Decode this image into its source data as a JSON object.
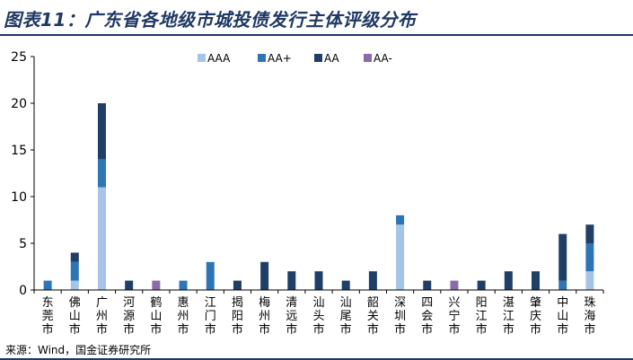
{
  "header": {
    "title": "图表11：广东省各地级市城投债发行主体评级分布"
  },
  "footer": {
    "source": "来源：Wind，国金证券研究所"
  },
  "chart_data": {
    "type": "bar",
    "stacked": true,
    "title": "图表11：广东省各地级市城投债发行主体评级分布",
    "xlabel": "",
    "ylabel": "",
    "ylim": [
      0,
      25
    ],
    "yticks": [
      0,
      5,
      10,
      15,
      20,
      25
    ],
    "grid": false,
    "legend_position": "top",
    "categories": [
      "东莞市",
      "佛山市",
      "广州市",
      "河源市",
      "鹤山市",
      "惠州市",
      "江门市",
      "揭阳市",
      "梅州市",
      "清远市",
      "汕头市",
      "汕尾市",
      "韶关市",
      "深圳市",
      "四会市",
      "兴宁市",
      "阳江市",
      "湛江市",
      "肇庆市",
      "中山市",
      "珠海市"
    ],
    "series": [
      {
        "name": "AAA",
        "color": "#a6c5e6",
        "values": [
          0,
          1,
          11,
          0,
          0,
          0,
          0,
          0,
          0,
          0,
          0,
          0,
          0,
          7,
          0,
          0,
          0,
          0,
          0,
          0,
          2
        ]
      },
      {
        "name": "AA+",
        "color": "#2e75b6",
        "values": [
          1,
          2,
          3,
          0,
          0,
          1,
          3,
          0,
          0,
          0,
          0,
          0,
          0,
          1,
          0,
          0,
          0,
          0,
          0,
          1,
          3
        ]
      },
      {
        "name": "AA",
        "color": "#1f3f66",
        "values": [
          0,
          1,
          6,
          1,
          0,
          0,
          0,
          1,
          3,
          2,
          2,
          1,
          2,
          0,
          1,
          0,
          1,
          2,
          2,
          5,
          2
        ]
      },
      {
        "name": "AA-",
        "color": "#8a6aa8",
        "values": [
          0,
          0,
          0,
          0,
          1,
          0,
          0,
          0,
          0,
          0,
          0,
          0,
          0,
          0,
          0,
          1,
          0,
          0,
          0,
          0,
          0
        ]
      }
    ]
  }
}
